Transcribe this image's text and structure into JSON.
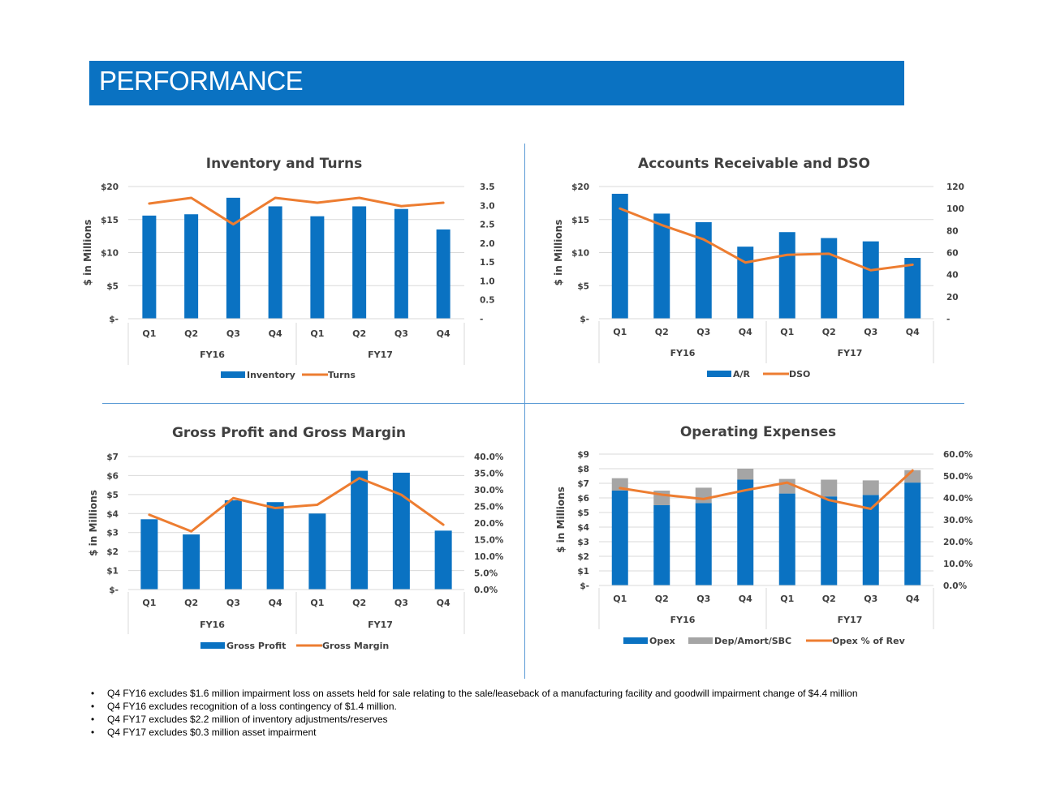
{
  "header": {
    "title": "PERFORMANCE"
  },
  "colors": {
    "header_bg": "#0A72C2",
    "bar_blue": "#0A72C2",
    "bar_gray": "#A5A5A5",
    "line_orange": "#ED7D31",
    "divider": "#5B9BD5"
  },
  "notes": [
    "Q4 FY16 excludes $1.6 million impairment loss on assets held for sale relating to the sale/leaseback of a manufacturing facility and goodwill impairment change of $4.4 million",
    "Q4 FY16 excludes recognition of a loss contingency of $1.4 million.",
    "Q4 FY17 excludes $2.2 million of inventory adjustments/reserves",
    "Q4 FY17 excludes $0.3 million asset impairment"
  ],
  "chart_data": [
    {
      "id": "inventory",
      "type": "bar",
      "title": "Inventory and Turns",
      "ylabel": "$ in Millions",
      "categories": [
        "Q1",
        "Q2",
        "Q3",
        "Q4",
        "Q1",
        "Q2",
        "Q3",
        "Q4"
      ],
      "groups": [
        "FY16",
        "FY17"
      ],
      "ylim": [
        0,
        20
      ],
      "yticks": [
        0,
        5,
        10,
        15,
        20
      ],
      "ytick_labels": [
        "$-",
        "$5",
        "$10",
        "$15",
        "$20"
      ],
      "y2lim": [
        0,
        3.5
      ],
      "y2ticks": [
        0,
        0.5,
        1.0,
        1.5,
        2.0,
        2.5,
        3.0,
        3.5
      ],
      "y2tick_labels": [
        "-",
        "0.5",
        "1.0",
        "1.5",
        "2.0",
        "2.5",
        "3.0",
        "3.5"
      ],
      "series": [
        {
          "name": "Inventory",
          "kind": "bar",
          "values": [
            15.6,
            15.8,
            18.3,
            17.0,
            15.5,
            17.0,
            16.6,
            13.5
          ]
        },
        {
          "name": "Turns",
          "kind": "line",
          "axis": "y2",
          "values": [
            3.05,
            3.2,
            2.5,
            3.2,
            3.07,
            3.2,
            2.98,
            3.07
          ]
        }
      ],
      "legend": [
        "Inventory",
        "Turns"
      ],
      "grid": true
    },
    {
      "id": "ar",
      "type": "bar",
      "title": "Accounts Receivable and DSO",
      "ylabel": "$ in Millions",
      "categories": [
        "Q1",
        "Q2",
        "Q3",
        "Q4",
        "Q1",
        "Q2",
        "Q3",
        "Q4"
      ],
      "groups": [
        "FY16",
        "FY17"
      ],
      "ylim": [
        0,
        20
      ],
      "yticks": [
        0,
        5,
        10,
        15,
        20
      ],
      "ytick_labels": [
        "$-",
        "$5",
        "$10",
        "$15",
        "$20"
      ],
      "y2lim": [
        0,
        120
      ],
      "y2ticks": [
        0,
        20,
        40,
        60,
        80,
        100,
        120
      ],
      "y2tick_labels": [
        "-",
        "20",
        "40",
        "60",
        "80",
        "100",
        "120"
      ],
      "series": [
        {
          "name": "A/R",
          "kind": "bar",
          "values": [
            18.9,
            15.9,
            14.6,
            10.9,
            13.1,
            12.2,
            11.7,
            9.2
          ]
        },
        {
          "name": "DSO",
          "kind": "line",
          "axis": "y2",
          "values": [
            100,
            85,
            72,
            51,
            58,
            59,
            44,
            49
          ]
        }
      ],
      "legend": [
        "A/R",
        "DSO"
      ],
      "grid": true
    },
    {
      "id": "gp",
      "type": "bar",
      "title": "Gross Profit and Gross Margin",
      "ylabel": "$ in Millions",
      "categories": [
        "Q1",
        "Q2",
        "Q3",
        "Q4",
        "Q1",
        "Q2",
        "Q3",
        "Q4"
      ],
      "groups": [
        "FY16",
        "FY17"
      ],
      "ylim": [
        0,
        7
      ],
      "yticks": [
        0,
        1,
        2,
        3,
        4,
        5,
        6,
        7
      ],
      "ytick_labels": [
        "$-",
        "$1",
        "$2",
        "$3",
        "$4",
        "$5",
        "$6",
        "$7"
      ],
      "y2lim": [
        0,
        40
      ],
      "y2ticks": [
        0,
        5,
        10,
        15,
        20,
        25,
        30,
        35,
        40
      ],
      "y2tick_labels": [
        "0.0%",
        "5.0%",
        "10.0%",
        "15.0%",
        "20.0%",
        "25.0%",
        "30.0%",
        "35.0%",
        "40.0%"
      ],
      "series": [
        {
          "name": "Gross Profit",
          "kind": "bar",
          "values": [
            3.7,
            2.9,
            4.7,
            4.6,
            4.0,
            6.25,
            6.15,
            3.1
          ]
        },
        {
          "name": "Gross Margin",
          "kind": "line",
          "axis": "y2",
          "values": [
            22.5,
            17.5,
            27.5,
            24.5,
            25.5,
            33.5,
            28.5,
            19.5
          ]
        }
      ],
      "legend": [
        "Gross Profit",
        "Gross Margin"
      ],
      "grid": true
    },
    {
      "id": "opex",
      "type": "bar",
      "title": "Operating Expenses",
      "ylabel": "$ in Millions",
      "categories": [
        "Q1",
        "Q2",
        "Q3",
        "Q4",
        "Q1",
        "Q2",
        "Q3",
        "Q4"
      ],
      "groups": [
        "FY16",
        "FY17"
      ],
      "ylim": [
        0,
        9
      ],
      "yticks": [
        0,
        1,
        2,
        3,
        4,
        5,
        6,
        7,
        8,
        9
      ],
      "ytick_labels": [
        "$-",
        "$1",
        "$2",
        "$3",
        "$4",
        "$5",
        "$6",
        "$7",
        "$8",
        "$9"
      ],
      "y2lim": [
        0,
        60
      ],
      "y2ticks": [
        0,
        10,
        20,
        30,
        40,
        50,
        60
      ],
      "y2tick_labels": [
        "0.0%",
        "10.0%",
        "20.0%",
        "30.0%",
        "40.0%",
        "50.0%",
        "60.0%"
      ],
      "stacked": true,
      "series": [
        {
          "name": "Opex",
          "kind": "bar",
          "values": [
            6.5,
            5.5,
            5.65,
            7.25,
            6.3,
            6.1,
            6.2,
            7.05
          ]
        },
        {
          "name": "Dep/Amort/SBC",
          "kind": "bar",
          "values": [
            0.85,
            1.0,
            1.05,
            0.75,
            1.0,
            1.15,
            1.0,
            0.85
          ]
        },
        {
          "name": "Opex % of Rev",
          "kind": "line",
          "axis": "y2",
          "values": [
            44.5,
            41.5,
            39.5,
            43.5,
            47,
            39,
            35,
            52.5
          ]
        }
      ],
      "legend": [
        "Opex",
        "Dep/Amort/SBC",
        "Opex % of Rev"
      ],
      "grid": true
    }
  ]
}
